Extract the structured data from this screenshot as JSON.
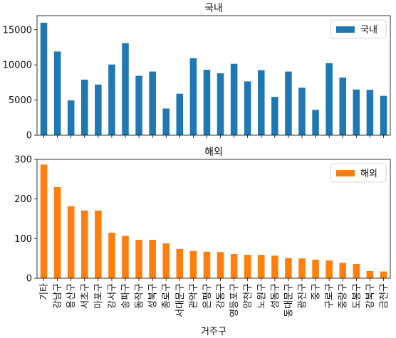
{
  "chart_data": [
    {
      "type": "bar",
      "title": "국내",
      "xlabel": "",
      "ylabel": "",
      "ylim": [
        0,
        17000
      ],
      "yticks": [
        0,
        5000,
        10000,
        15000
      ],
      "show_xticklabels": false,
      "legend_position": "top-right",
      "categories": [
        "기타",
        "강남구",
        "용산구",
        "서초구",
        "마포구",
        "강서구",
        "송파구",
        "동작구",
        "성북구",
        "종로구",
        "서대문구",
        "관악구",
        "은평구",
        "강동구",
        "영등포구",
        "양천구",
        "노원구",
        "성동구",
        "동대문구",
        "광진구",
        "중구",
        "구로구",
        "중랑구",
        "도봉구",
        "강북구",
        "금천구"
      ],
      "series": [
        {
          "name": "국내",
          "color": "#1f77b4",
          "values": [
            16000,
            11900,
            4950,
            7900,
            7200,
            10050,
            13100,
            8450,
            9050,
            3800,
            5900,
            10950,
            9300,
            8800,
            10150,
            7650,
            9250,
            5450,
            9050,
            6750,
            3600,
            10250,
            8200,
            6500,
            6450,
            5600
          ]
        }
      ]
    },
    {
      "type": "bar",
      "title": "해외",
      "xlabel": "거주구",
      "ylabel": "",
      "ylim": [
        0,
        300
      ],
      "yticks": [
        0,
        100,
        200,
        300
      ],
      "show_xticklabels": true,
      "legend_position": "top-right",
      "categories": [
        "기타",
        "강남구",
        "용산구",
        "서초구",
        "마포구",
        "강서구",
        "송파구",
        "동작구",
        "성북구",
        "종로구",
        "서대문구",
        "관악구",
        "은평구",
        "강동구",
        "영등포구",
        "양천구",
        "노원구",
        "성동구",
        "동대문구",
        "광진구",
        "중구",
        "구로구",
        "중랑구",
        "도봉구",
        "강북구",
        "금천구"
      ],
      "series": [
        {
          "name": "해외",
          "color": "#ff7f0e",
          "values": [
            287,
            230,
            182,
            171,
            171,
            115,
            107,
            97,
            97,
            88,
            74,
            69,
            67,
            66,
            61,
            59,
            59,
            57,
            51,
            50,
            47,
            45,
            39,
            36,
            18,
            17
          ]
        }
      ]
    }
  ]
}
